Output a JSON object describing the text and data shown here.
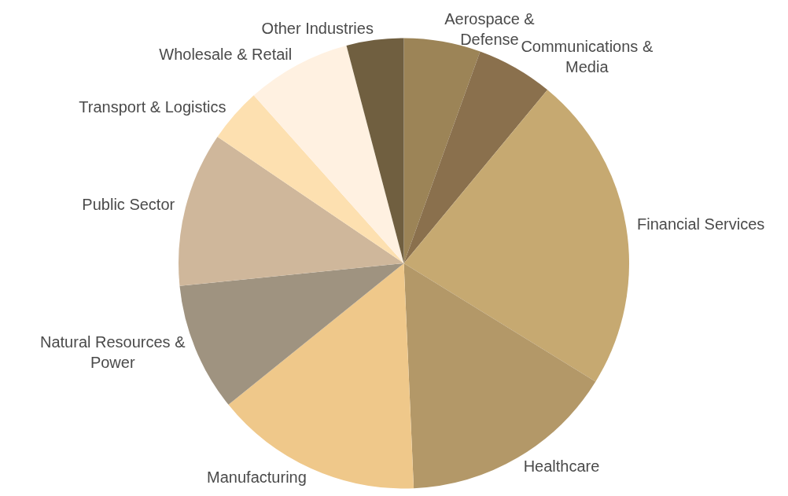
{
  "chart_data": {
    "type": "pie",
    "categories": [
      "Aerospace & Defense",
      "Communications & Media",
      "Financial Services",
      "Healthcare",
      "Manufacturing",
      "Natural Resources & Power",
      "Public Sector",
      "Transport & Logistics",
      "Wholesale & Retail",
      "Other Industries"
    ],
    "values": [
      5.5,
      5.5,
      22.8,
      15.5,
      14.9,
      9.2,
      11.1,
      3.9,
      7.5,
      4.1
    ],
    "colors": [
      "#9c8457",
      "#8a704d",
      "#c6a971",
      "#b39868",
      "#efc88a",
      "#9f9380",
      "#cfb79b",
      "#fde0b0",
      "#fff1e1",
      "#705f40"
    ],
    "legend": false
  }
}
